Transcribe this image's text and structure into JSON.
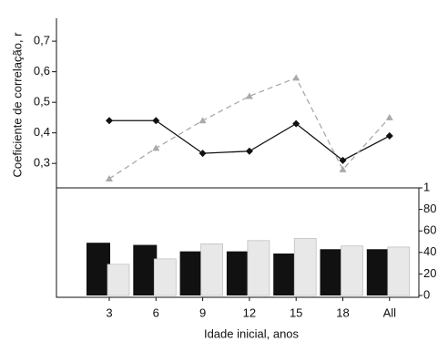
{
  "chart_data": [
    {
      "type": "line",
      "ylabel": "Coeficiente de correlação, r",
      "categories": [
        "3",
        "6",
        "9",
        "12",
        "15",
        "18",
        "All"
      ],
      "series": [
        {
          "color": "#111111",
          "marker": "diamond",
          "dash": false,
          "values": [
            0.44,
            0.44,
            0.333,
            0.34,
            0.43,
            0.31,
            0.39
          ]
        },
        {
          "color": "#aaaaaa",
          "marker": "triangle",
          "dash": true,
          "values": [
            0.25,
            0.35,
            0.44,
            0.52,
            0.58,
            0.28,
            0.45
          ]
        }
      ],
      "ylim": [
        0.22,
        0.775
      ],
      "yticks": [
        {
          "value": 0.3,
          "label": "0,3"
        },
        {
          "value": 0.4,
          "label": "0,4"
        },
        {
          "value": 0.5,
          "label": "0,5"
        },
        {
          "value": 0.6,
          "label": "0,6"
        },
        {
          "value": 0.7,
          "label": "0,7"
        }
      ]
    },
    {
      "type": "bar",
      "xlabel": "Idade inicial, anos",
      "categories": [
        "3",
        "6",
        "9",
        "12",
        "15",
        "18",
        "All"
      ],
      "series": [
        {
          "color": "#111111",
          "values": [
            49,
            47,
            41,
            41,
            39,
            43,
            43
          ]
        },
        {
          "color": "#e8e8e8",
          "values": [
            29,
            34,
            48,
            51,
            53,
            46,
            45
          ]
        }
      ],
      "ylim": [
        0,
        100
      ],
      "yticks": [
        0,
        20,
        40,
        60,
        80,
        {
          "value": 100,
          "label": "1"
        }
      ]
    }
  ]
}
